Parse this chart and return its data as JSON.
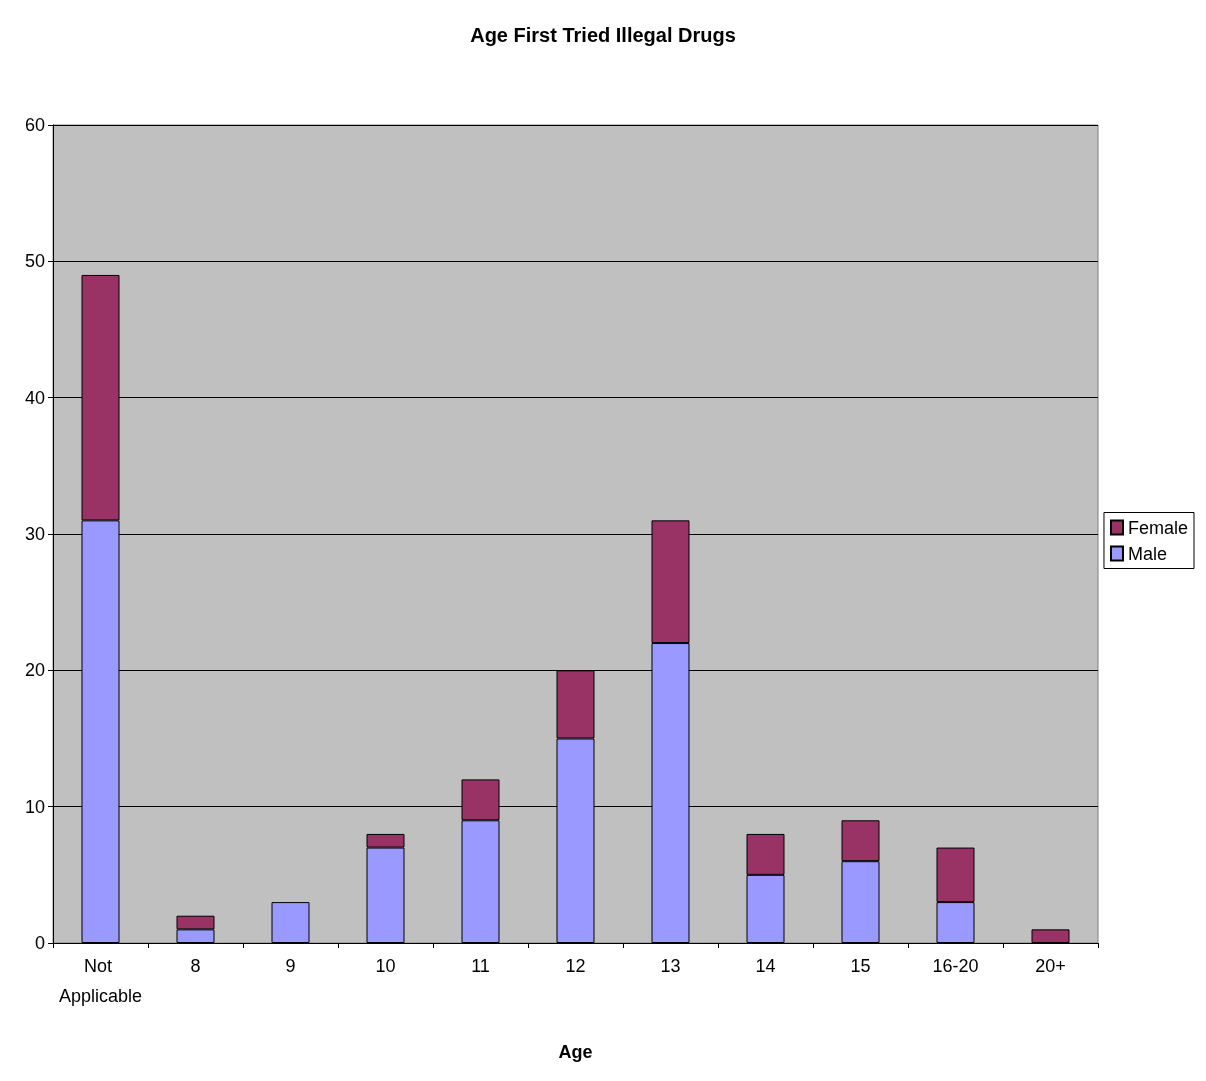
{
  "chart_data": {
    "type": "bar",
    "title": "Age First Tried Illegal Drugs",
    "xlabel": "Age",
    "categories": [
      "Not Applicable",
      "8",
      "9",
      "10",
      "11",
      "12",
      "13",
      "14",
      "15",
      "16-20",
      "20+"
    ],
    "series": [
      {
        "name": "Male",
        "color": "#9999ff",
        "values": [
          31,
          1,
          3,
          7,
          9,
          15,
          22,
          5,
          6,
          3,
          0
        ]
      },
      {
        "name": "Female",
        "color": "#993366",
        "values": [
          18,
          1,
          0,
          1,
          3,
          5,
          9,
          3,
          3,
          4,
          1
        ]
      }
    ],
    "stacked": true,
    "ylim": [
      0,
      60
    ],
    "yticks": [
      0,
      10,
      20,
      30,
      40,
      50,
      60
    ],
    "grid": "y",
    "legend": "right"
  }
}
